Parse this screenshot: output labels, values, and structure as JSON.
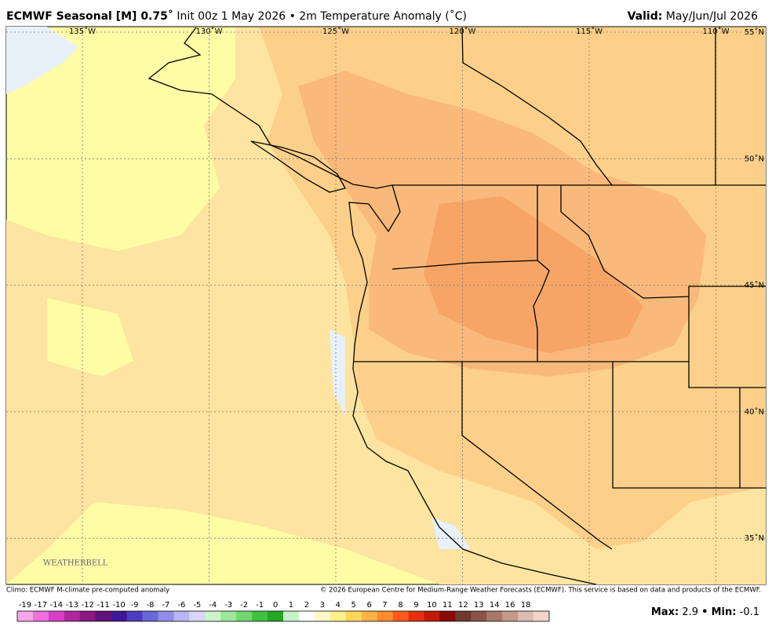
{
  "header": {
    "title_bold": "ECMWF Seasonal [M] 0.75˚",
    "title_rest": "Init 00z 1 May 2026 • 2m Temperature Anomaly (˚C)",
    "valid_label": "Valid:",
    "valid_value": "May/Jun/Jul 2026"
  },
  "map": {
    "lon_labels": [
      "135˚W",
      "130˚W",
      "125˚W",
      "120˚W",
      "115˚W",
      "110˚W"
    ],
    "lat_labels": [
      "55˚N",
      "50˚N",
      "45˚N",
      "40˚N",
      "35˚N"
    ],
    "logo": "WEATHERBELL"
  },
  "footer": {
    "climo": "Climo: ECMWF M-climate pre-computed anomaly",
    "copyright": "© 2026 European Centre for Medium-Range Weather Forecasts (ECMWF). This service is based on data and products of the ECMWF.",
    "max_label": "Max:",
    "max": 2.9,
    "separator": "•",
    "min_label": "Min:",
    "min": -0.1
  },
  "colorbar": {
    "labels": [
      -19,
      -17,
      -14,
      -13,
      -12,
      -11,
      -10,
      -9,
      -8,
      -7,
      -6,
      -5,
      -4,
      -3,
      -2,
      -1,
      0,
      1,
      2,
      3,
      4,
      5,
      6,
      7,
      8,
      9,
      10,
      11,
      12,
      13,
      14,
      16,
      18
    ],
    "colors": [
      "#f7a6e8",
      "#ef6fdc",
      "#d93fc6",
      "#b0279f",
      "#8a1a82",
      "#64107a",
      "#3e1696",
      "#4b3ec0",
      "#6a68d6",
      "#8f8fe6",
      "#b7b7f2",
      "#d7d7fa",
      "#c9f5c9",
      "#9ce89c",
      "#6fd86f",
      "#42c042",
      "#22a822",
      "#c8f2c8",
      "#ffffff",
      "#fff8c8",
      "#ffef8a",
      "#ffd65a",
      "#ffb347",
      "#ff8c2e",
      "#ff5a1e",
      "#e83010",
      "#c01a0a",
      "#8a0a06",
      "#6e3a30",
      "#8a5548",
      "#a87868",
      "#c49a8a",
      "#dcbcb0",
      "#f0d4cc"
    ]
  }
}
